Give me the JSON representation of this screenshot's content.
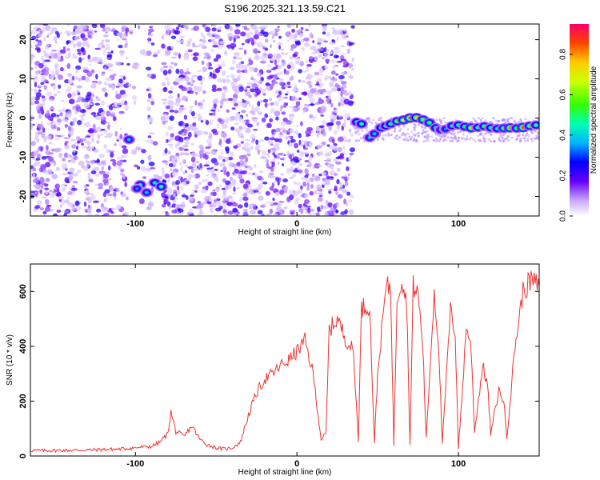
{
  "title": "S196.2025.321.13.59.C21",
  "chart_data": [
    {
      "type": "heatmap",
      "name": "spectrogram",
      "xlabel": "Height of straight line (km)",
      "ylabel": "Frequency (Hz)",
      "xlim": [
        -165,
        150
      ],
      "ylim": [
        -25,
        24
      ],
      "x_ticks": [
        -100,
        0,
        100
      ],
      "y_ticks": [
        -20,
        -10,
        0,
        10,
        20
      ],
      "colorbar": {
        "label": "Normalized spectral amplitude",
        "range": [
          0.0,
          0.95
        ],
        "ticks": [
          0.0,
          0.2,
          0.4,
          0.6,
          0.8
        ],
        "tick_labels": [
          "0.0",
          "0.2",
          "0.4",
          "0.6",
          "0.8"
        ]
      },
      "blobs": [
        {
          "x": -104,
          "y": -5.5,
          "a": 0.35
        },
        {
          "x": -97,
          "y": -17,
          "a": 0.4
        },
        {
          "x": -93,
          "y": -19,
          "a": 0.35
        },
        {
          "x": -88,
          "y": -16.5,
          "a": 0.4
        },
        {
          "x": -84,
          "y": -17.5,
          "a": 0.45
        },
        {
          "x": -99,
          "y": -18,
          "a": 0.3
        }
      ],
      "ridge": [
        {
          "x": 37,
          "y": -1.0,
          "a": 0.4
        },
        {
          "x": 40,
          "y": -1.5,
          "a": 0.45
        },
        {
          "x": 45,
          "y": -5.0,
          "a": 0.35
        },
        {
          "x": 48,
          "y": -4.0,
          "a": 0.35
        },
        {
          "x": 52,
          "y": -2.5,
          "a": 0.4
        },
        {
          "x": 55,
          "y": -2.0,
          "a": 0.45
        },
        {
          "x": 58,
          "y": -1.5,
          "a": 0.45
        },
        {
          "x": 62,
          "y": -0.8,
          "a": 0.55
        },
        {
          "x": 66,
          "y": -0.5,
          "a": 0.65
        },
        {
          "x": 70,
          "y": 0.0,
          "a": 0.85
        },
        {
          "x": 74,
          "y": 0.1,
          "a": 0.7
        },
        {
          "x": 78,
          "y": -0.4,
          "a": 0.55
        },
        {
          "x": 82,
          "y": -1.2,
          "a": 0.5
        },
        {
          "x": 86,
          "y": -2.5,
          "a": 0.45
        },
        {
          "x": 89,
          "y": -3.0,
          "a": 0.35
        },
        {
          "x": 92,
          "y": -2.8,
          "a": 0.3
        },
        {
          "x": 96,
          "y": -2.0,
          "a": 0.4
        },
        {
          "x": 100,
          "y": -1.8,
          "a": 0.45
        },
        {
          "x": 104,
          "y": -2.2,
          "a": 0.5
        },
        {
          "x": 108,
          "y": -2.5,
          "a": 0.75
        },
        {
          "x": 112,
          "y": -2.4,
          "a": 0.45
        },
        {
          "x": 116,
          "y": -2.1,
          "a": 0.5
        },
        {
          "x": 120,
          "y": -2.5,
          "a": 0.45
        },
        {
          "x": 124,
          "y": -2.7,
          "a": 0.4
        },
        {
          "x": 128,
          "y": -2.6,
          "a": 0.55
        },
        {
          "x": 132,
          "y": -2.5,
          "a": 0.8
        },
        {
          "x": 136,
          "y": -2.6,
          "a": 0.5
        },
        {
          "x": 140,
          "y": -2.4,
          "a": 0.85
        },
        {
          "x": 144,
          "y": -2.0,
          "a": 0.55
        },
        {
          "x": 148,
          "y": -1.8,
          "a": 0.45
        }
      ]
    },
    {
      "type": "line",
      "name": "snr",
      "xlabel": "Height of straight line (km)",
      "ylabel": "SNR (10 * v/v)",
      "xlim": [
        -165,
        150
      ],
      "ylim": [
        0,
        700
      ],
      "x_ticks": [
        -100,
        0,
        100
      ],
      "y_ticks": [
        0,
        200,
        400,
        600
      ],
      "color": "#ee3333",
      "series": [
        {
          "name": "SNR",
          "x": [
            -165,
            -150,
            -130,
            -110,
            -100,
            -90,
            -85,
            -80,
            -78,
            -75,
            -70,
            -65,
            -60,
            -55,
            -50,
            -45,
            -40,
            -35,
            -30,
            -25,
            -20,
            -15,
            -10,
            -5,
            0,
            5,
            10,
            15,
            18,
            20,
            25,
            30,
            35,
            38,
            40,
            45,
            48,
            50,
            55,
            58,
            60,
            62,
            65,
            68,
            70,
            72,
            75,
            78,
            80,
            85,
            88,
            90,
            95,
            98,
            100,
            102,
            105,
            108,
            110,
            115,
            118,
            120,
            125,
            128,
            130,
            135,
            140,
            145,
            150
          ],
          "y": [
            20,
            20,
            22,
            25,
            30,
            35,
            50,
            80,
            160,
            90,
            70,
            110,
            60,
            40,
            30,
            25,
            30,
            50,
            150,
            230,
            280,
            300,
            330,
            350,
            380,
            420,
            300,
            60,
            80,
            460,
            500,
            430,
            380,
            60,
            540,
            550,
            50,
            300,
            610,
            620,
            40,
            580,
            650,
            560,
            40,
            620,
            590,
            400,
            60,
            600,
            380,
            40,
            530,
            450,
            30,
            200,
            480,
            380,
            90,
            330,
            260,
            80,
            240,
            200,
            70,
            400,
            600,
            640,
            620
          ]
        }
      ]
    }
  ],
  "colors": {
    "snr_line": "#ee3333",
    "axis": "#000000",
    "background": "#ffffff"
  }
}
